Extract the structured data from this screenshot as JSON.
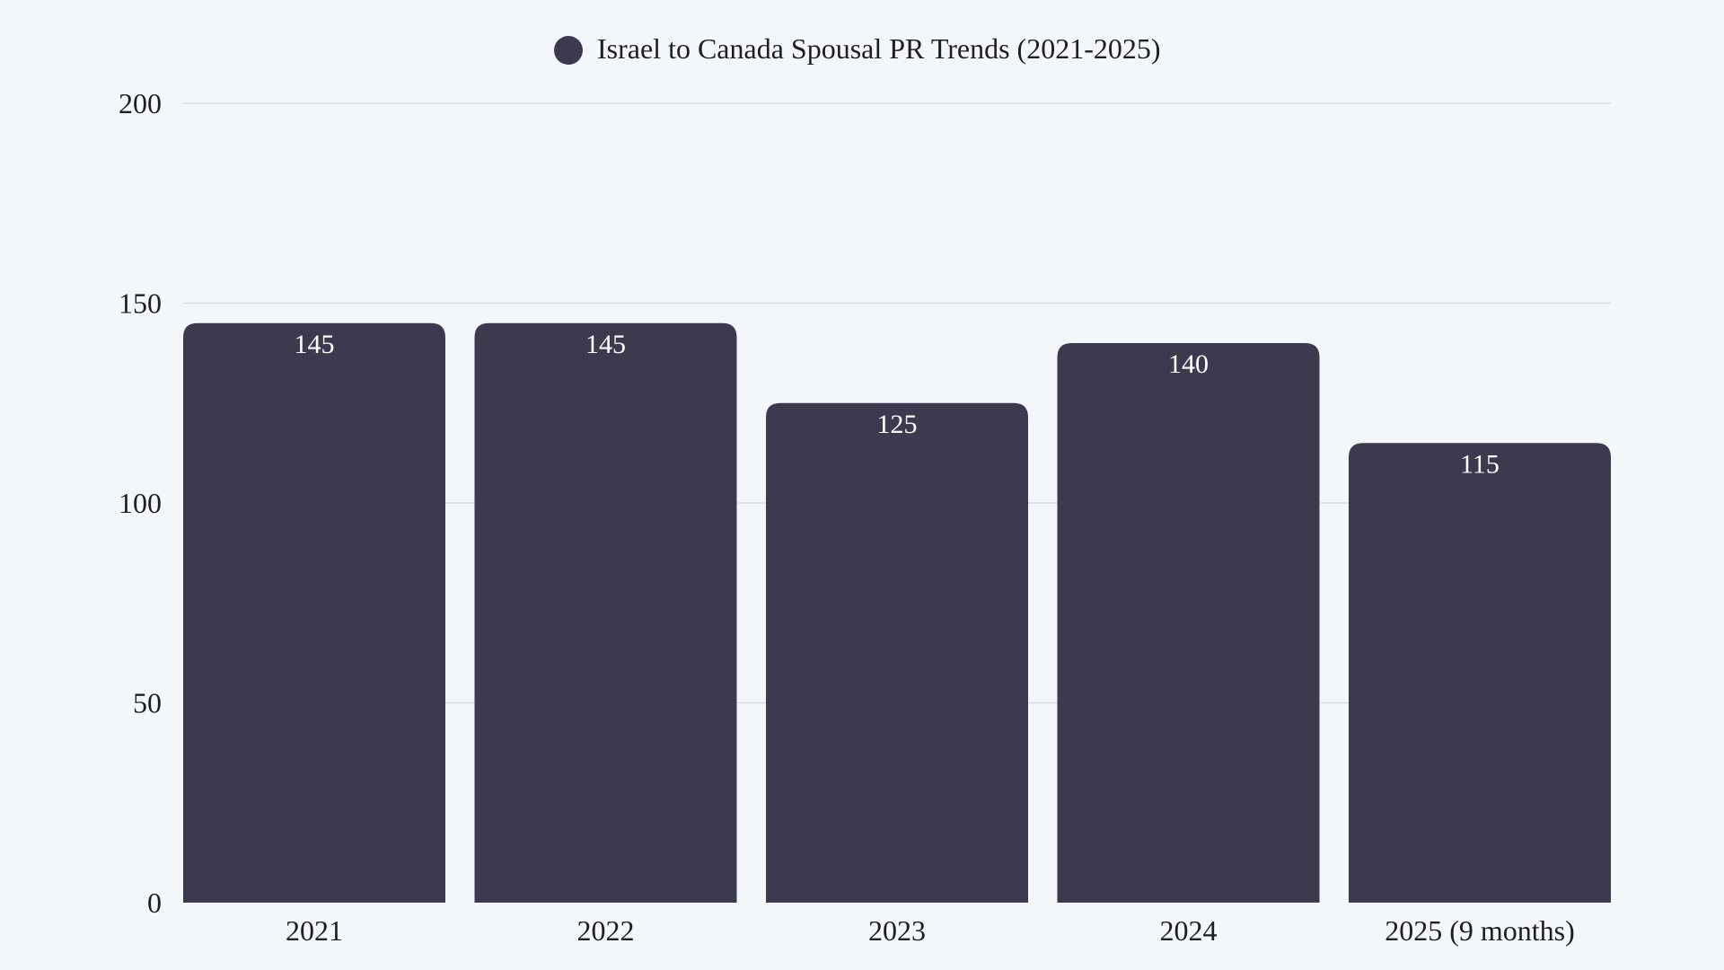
{
  "chart_data": {
    "type": "bar",
    "title": "",
    "legend": {
      "label": "Israel to Canada Spousal PR Trends (2021-2025)",
      "placement": "top-center"
    },
    "categories": [
      "2021",
      "2022",
      "2023",
      "2024",
      "2025 (9 months)"
    ],
    "series": [
      {
        "name": "Israel to Canada Spousal PR Trends (2021-2025)",
        "values": [
          145,
          145,
          125,
          140,
          115
        ]
      }
    ],
    "ylim": [
      0,
      200
    ],
    "yticks": [
      0,
      50,
      100,
      150,
      200
    ],
    "grid": true,
    "data_labels": true,
    "colors": {
      "bar": "#3d3a50",
      "background": "#f4f7fa",
      "grid": "#d9dde2"
    }
  }
}
